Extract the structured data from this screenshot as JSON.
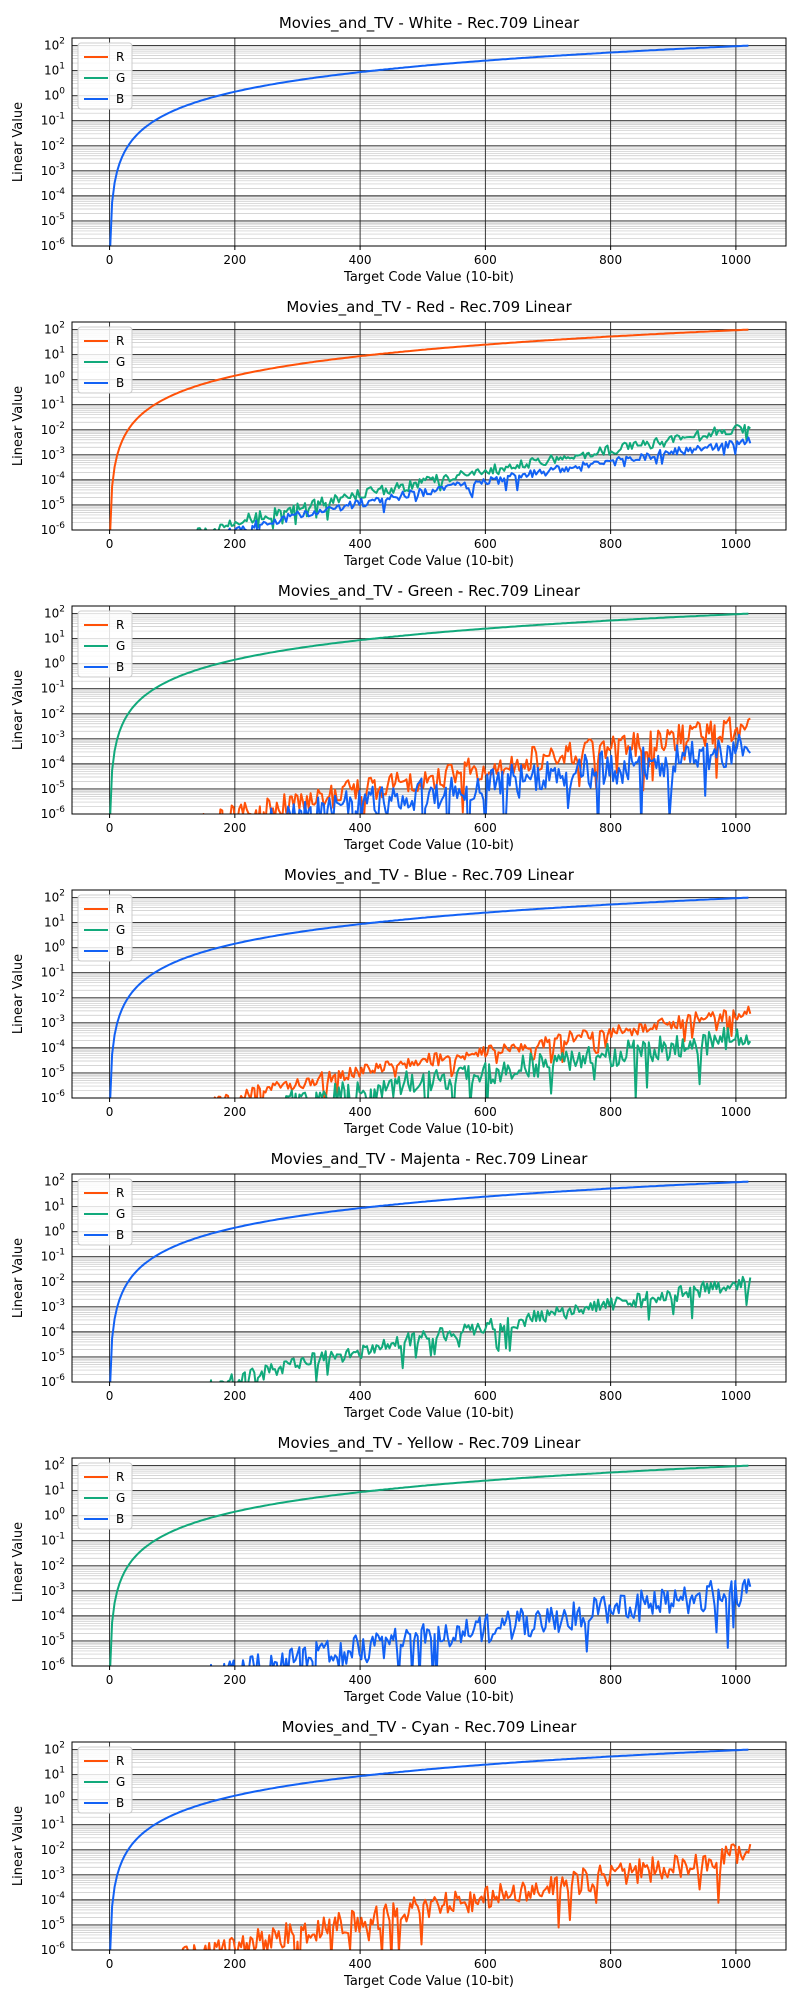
{
  "chart_data": [
    {
      "type": "line",
      "title": "Movies_and_TV - White - Rec.709 Linear",
      "xlabel": "Target Code Value (10-bit)",
      "ylabel": "Linear Value",
      "yscale": "log",
      "xlim": [
        -60,
        1080
      ],
      "ylim": [
        1e-06,
        200
      ],
      "x_ticks": [
        "0",
        "200",
        "400",
        "600",
        "800",
        "1000"
      ],
      "legend": [
        "R",
        "G",
        "B"
      ],
      "legend_placement": "top-left",
      "grid": true,
      "series": [
        {
          "name": "R",
          "color": "#ff5108",
          "visible": false,
          "approx_start_x": null,
          "approx_end_value": null,
          "noise_decades": 0
        },
        {
          "name": "G",
          "color": "#11a97b",
          "visible": false,
          "approx_start_x": null,
          "approx_end_value": null,
          "noise_decades": 0
        },
        {
          "name": "B",
          "color": "#1261f4",
          "visible": true,
          "approx_start_x": 0,
          "approx_end_value": 100,
          "noise_decades": 0
        }
      ]
    },
    {
      "type": "line",
      "title": "Movies_and_TV - Red - Rec.709 Linear",
      "xlabel": "Target Code Value (10-bit)",
      "ylabel": "Linear Value",
      "yscale": "log",
      "xlim": [
        -60,
        1080
      ],
      "ylim": [
        1e-06,
        200
      ],
      "x_ticks": [
        "0",
        "200",
        "400",
        "600",
        "800",
        "1000"
      ],
      "legend": [
        "R",
        "G",
        "B"
      ],
      "legend_placement": "top-left",
      "grid": true,
      "series": [
        {
          "name": "R",
          "color": "#ff5108",
          "visible": true,
          "approx_start_x": 0,
          "approx_end_value": 100,
          "noise_decades": 0
        },
        {
          "name": "G",
          "color": "#11a97b",
          "visible": true,
          "approx_start_x": 125,
          "approx_end_value": 0.02,
          "noise_decades": 0.4
        },
        {
          "name": "B",
          "color": "#1261f4",
          "visible": true,
          "approx_start_x": 175,
          "approx_end_value": 0.005,
          "noise_decades": 0.3
        }
      ]
    },
    {
      "type": "line",
      "title": "Movies_and_TV - Green - Rec.709 Linear",
      "xlabel": "Target Code Value (10-bit)",
      "ylabel": "Linear Value",
      "yscale": "log",
      "xlim": [
        -60,
        1080
      ],
      "ylim": [
        1e-06,
        200
      ],
      "x_ticks": [
        "0",
        "200",
        "400",
        "600",
        "800",
        "1000"
      ],
      "legend": [
        "R",
        "G",
        "B"
      ],
      "legend_placement": "top-left",
      "grid": true,
      "series": [
        {
          "name": "R",
          "color": "#ff5108",
          "visible": true,
          "approx_start_x": 140,
          "approx_end_value": 0.01,
          "noise_decades": 1.0
        },
        {
          "name": "G",
          "color": "#11a97b",
          "visible": true,
          "approx_start_x": 0,
          "approx_end_value": 100,
          "noise_decades": 0
        },
        {
          "name": "B",
          "color": "#1261f4",
          "visible": true,
          "approx_start_x": 190,
          "approx_end_value": 0.002,
          "noise_decades": 1.4
        }
      ]
    },
    {
      "type": "line",
      "title": "Movies_and_TV - Blue - Rec.709 Linear",
      "xlabel": "Target Code Value (10-bit)",
      "ylabel": "Linear Value",
      "yscale": "log",
      "xlim": [
        -60,
        1080
      ],
      "ylim": [
        1e-06,
        200
      ],
      "x_ticks": [
        "0",
        "200",
        "400",
        "600",
        "800",
        "1000"
      ],
      "legend": [
        "R",
        "G",
        "B"
      ],
      "legend_placement": "top-left",
      "grid": true,
      "series": [
        {
          "name": "R",
          "color": "#ff5108",
          "visible": true,
          "approx_start_x": 150,
          "approx_end_value": 0.005,
          "noise_decades": 0.5
        },
        {
          "name": "G",
          "color": "#11a97b",
          "visible": true,
          "approx_start_x": 230,
          "approx_end_value": 0.0008,
          "noise_decades": 1.0
        },
        {
          "name": "B",
          "color": "#1261f4",
          "visible": true,
          "approx_start_x": 0,
          "approx_end_value": 100,
          "noise_decades": 0
        }
      ]
    },
    {
      "type": "line",
      "title": "Movies_and_TV - Majenta - Rec.709 Linear",
      "xlabel": "Target Code Value (10-bit)",
      "ylabel": "Linear Value",
      "yscale": "log",
      "xlim": [
        -60,
        1080
      ],
      "ylim": [
        1e-06,
        200
      ],
      "x_ticks": [
        "0",
        "200",
        "400",
        "600",
        "800",
        "1000"
      ],
      "legend": [
        "R",
        "G",
        "B"
      ],
      "legend_placement": "top-left",
      "grid": true,
      "series": [
        {
          "name": "R",
          "color": "#ff5108",
          "visible": false,
          "approx_start_x": null,
          "approx_end_value": null,
          "noise_decades": 0
        },
        {
          "name": "G",
          "color": "#11a97b",
          "visible": true,
          "approx_start_x": 140,
          "approx_end_value": 0.02,
          "noise_decades": 0.6
        },
        {
          "name": "B",
          "color": "#1261f4",
          "visible": true,
          "approx_start_x": 0,
          "approx_end_value": 100,
          "noise_decades": 0
        }
      ]
    },
    {
      "type": "line",
      "title": "Movies_and_TV - Yellow - Rec.709 Linear",
      "xlabel": "Target Code Value (10-bit)",
      "ylabel": "Linear Value",
      "yscale": "log",
      "xlim": [
        -60,
        1080
      ],
      "ylim": [
        1e-06,
        200
      ],
      "x_ticks": [
        "0",
        "200",
        "400",
        "600",
        "800",
        "1000"
      ],
      "legend": [
        "R",
        "G",
        "B"
      ],
      "legend_placement": "top-left",
      "grid": true,
      "series": [
        {
          "name": "R",
          "color": "#ff5108",
          "visible": false,
          "approx_start_x": null,
          "approx_end_value": null,
          "noise_decades": 0
        },
        {
          "name": "G",
          "color": "#11a97b",
          "visible": true,
          "approx_start_x": 0,
          "approx_end_value": 100,
          "noise_decades": 0
        },
        {
          "name": "B",
          "color": "#1261f4",
          "visible": true,
          "approx_start_x": 140,
          "approx_end_value": 0.004,
          "noise_decades": 1.2
        }
      ]
    },
    {
      "type": "line",
      "title": "Movies_and_TV - Cyan - Rec.709 Linear",
      "xlabel": "Target Code Value (10-bit)",
      "ylabel": "Linear Value",
      "yscale": "log",
      "xlim": [
        -60,
        1080
      ],
      "ylim": [
        1e-06,
        200
      ],
      "x_ticks": [
        "0",
        "200",
        "400",
        "600",
        "800",
        "1000"
      ],
      "legend": [
        "R",
        "G",
        "B"
      ],
      "legend_placement": "top-left",
      "grid": true,
      "series": [
        {
          "name": "R",
          "color": "#ff5108",
          "visible": true,
          "approx_start_x": 100,
          "approx_end_value": 0.02,
          "noise_decades": 1.0
        },
        {
          "name": "G",
          "color": "#11a97b",
          "visible": false,
          "approx_start_x": null,
          "approx_end_value": null,
          "noise_decades": 0
        },
        {
          "name": "B",
          "color": "#1261f4",
          "visible": true,
          "approx_start_x": 0,
          "approx_end_value": 100,
          "noise_decades": 0
        }
      ]
    }
  ]
}
